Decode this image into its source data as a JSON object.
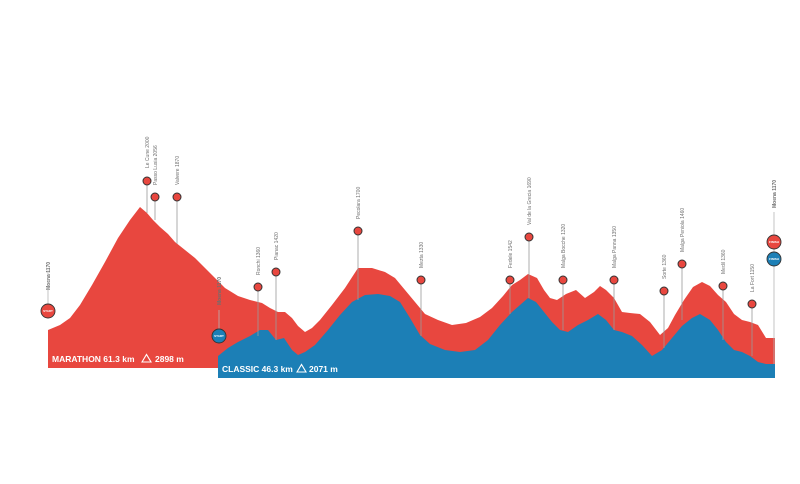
{
  "courses": {
    "marathon": {
      "label": "MARATHON 61.3 km",
      "climb": "2898 m",
      "color": "#e8473f"
    },
    "classic": {
      "label": "CLASSIC 46.3 km",
      "climb": "2071 m",
      "color": "#1c7fb6"
    }
  },
  "climb_icon": "triangle-up-icon",
  "markers": {
    "marathon_start": "START",
    "classic_start": "START",
    "marathon_finish": "FINISH",
    "classic_finish": "FINISH"
  },
  "waypoints": [
    {
      "id": "moena-start-marathon",
      "label": "Moena 1170",
      "bold": true
    },
    {
      "id": "le-cune",
      "label": "Le Cune 2000"
    },
    {
      "id": "passo-lusia",
      "label": "Passo Lusia 2056"
    },
    {
      "id": "valvere",
      "label": "Valvere 1870"
    },
    {
      "id": "moena-start-classic",
      "label": "Moena 1170",
      "bold": true
    },
    {
      "id": "ronchi",
      "label": "Ronchi 1360"
    },
    {
      "id": "pianac",
      "label": "Pianac 1420"
    },
    {
      "id": "pecolara",
      "label": "Pecolara 1700"
    },
    {
      "id": "mezta",
      "label": "Mezta 1330"
    },
    {
      "id": "fedele",
      "label": "Fedele 1542"
    },
    {
      "id": "val-de-la-grecia",
      "label": "Val de la Grecia 1690"
    },
    {
      "id": "malga-bocche",
      "label": "Malga Bocche 1320"
    },
    {
      "id": "malga-panna",
      "label": "Malga Panna 1350"
    },
    {
      "id": "sorte",
      "label": "Sorte 1360"
    },
    {
      "id": "malga-peniola",
      "label": "Malga Peniola 1460"
    },
    {
      "id": "medil",
      "label": "Medil 1360"
    },
    {
      "id": "la-fort",
      "label": "La Fort 1150"
    },
    {
      "id": "moena-finish",
      "label": "Moena 1170",
      "bold": true
    }
  ]
}
